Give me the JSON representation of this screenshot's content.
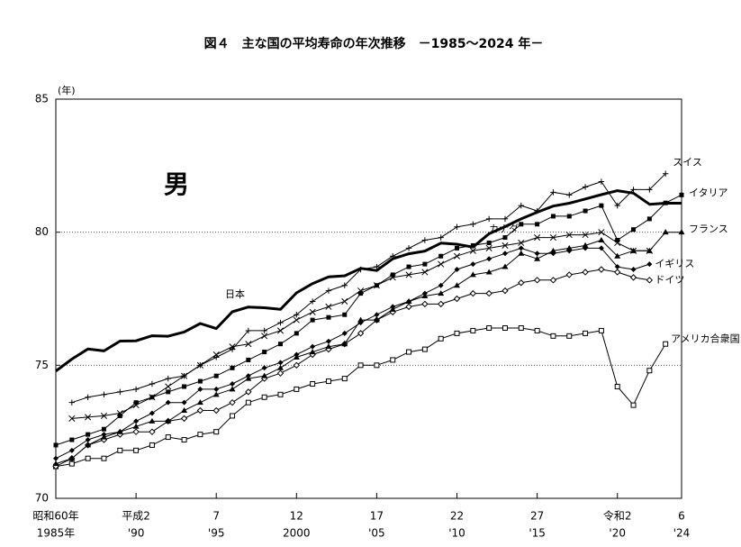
{
  "chart_data": {
    "type": "line",
    "title": "図４　主な国の平均寿命の年次推移　－1985～2024 年－",
    "annotation": "男",
    "y_unit": "(年)",
    "x": [
      1985,
      1986,
      1987,
      1988,
      1989,
      1990,
      1991,
      1992,
      1993,
      1994,
      1995,
      1996,
      1997,
      1998,
      1999,
      2000,
      2001,
      2002,
      2003,
      2004,
      2005,
      2006,
      2007,
      2008,
      2009,
      2010,
      2011,
      2012,
      2013,
      2014,
      2015,
      2016,
      2017,
      2018,
      2019,
      2020,
      2021,
      2022,
      2023,
      2024
    ],
    "xlim": [
      1985,
      2024
    ],
    "xticks": [
      {
        "value": 1985,
        "label": "1985年"
      },
      {
        "value": 1990,
        "label": "'90"
      },
      {
        "value": 1995,
        "label": "'95"
      },
      2000,
      {
        "value": 2005,
        "label": "'05"
      },
      {
        "value": 2010,
        "label": "'10"
      },
      {
        "value": 2015,
        "label": "'15"
      },
      {
        "value": 2020,
        "label": "'20"
      },
      {
        "value": 2024,
        "label": "'24"
      }
    ],
    "x_era_labels": [
      "昭和60年",
      "平成2",
      "7",
      "12",
      "17",
      "22",
      "27",
      "令和2",
      "6"
    ],
    "ylim": [
      70,
      85
    ],
    "yticks": [
      70,
      75,
      80,
      85
    ],
    "grid": true,
    "series": [
      {
        "name": "日本",
        "color": "#000000",
        "marker": "none",
        "values": [
          74.78,
          75.23,
          75.61,
          75.54,
          75.91,
          75.92,
          76.11,
          76.09,
          76.25,
          76.57,
          76.38,
          77.01,
          77.19,
          77.16,
          77.1,
          77.72,
          78.07,
          78.32,
          78.36,
          78.64,
          78.56,
          79.0,
          79.19,
          79.29,
          79.59,
          79.55,
          79.44,
          79.94,
          80.21,
          80.5,
          80.75,
          80.98,
          81.09,
          81.25,
          81.41,
          81.56,
          81.47,
          81.05,
          81.09,
          81.09
        ]
      },
      {
        "name": "スイス",
        "color": "#000000",
        "marker": "plus",
        "values": [
          null,
          73.6,
          73.8,
          73.9,
          74.0,
          74.1,
          74.3,
          74.5,
          74.6,
          75.0,
          75.3,
          75.6,
          76.3,
          76.3,
          76.6,
          76.9,
          77.4,
          77.8,
          78.0,
          78.6,
          78.7,
          79.1,
          79.4,
          79.7,
          79.8,
          80.2,
          80.3,
          80.5,
          80.5,
          81.0,
          80.8,
          81.5,
          81.4,
          81.7,
          81.9,
          81.0,
          81.6,
          81.6,
          82.2,
          null
        ]
      },
      {
        "name": "イタリア",
        "color": "#000000",
        "marker": "square",
        "values": [
          72.0,
          72.2,
          72.4,
          72.6,
          73.1,
          73.6,
          73.8,
          74.0,
          74.2,
          74.4,
          74.6,
          74.9,
          75.2,
          75.5,
          75.8,
          76.2,
          76.7,
          76.8,
          76.9,
          77.7,
          78.0,
          78.4,
          78.7,
          78.8,
          79.1,
          79.4,
          79.5,
          79.6,
          79.8,
          80.3,
          80.3,
          80.6,
          80.6,
          80.8,
          81.0,
          79.7,
          80.1,
          80.5,
          81.1,
          81.4
        ]
      },
      {
        "name": "フランス",
        "color": "#000000",
        "marker": "triangle",
        "values": [
          71.3,
          71.5,
          72.0,
          72.3,
          72.5,
          72.7,
          72.9,
          72.9,
          73.3,
          73.6,
          73.9,
          74.1,
          74.5,
          74.6,
          74.9,
          75.3,
          75.5,
          75.7,
          75.8,
          76.7,
          76.7,
          77.1,
          77.4,
          77.6,
          77.7,
          78.0,
          78.4,
          78.5,
          78.7,
          79.2,
          79.0,
          79.3,
          79.4,
          79.5,
          79.7,
          79.1,
          79.3,
          79.3,
          80.0,
          80.0
        ]
      },
      {
        "name": "カナダ",
        "color": "#000000",
        "marker": "x",
        "values": [
          null,
          73.0,
          73.05,
          73.1,
          73.2,
          73.5,
          73.8,
          74.2,
          74.6,
          75.0,
          75.4,
          75.7,
          75.8,
          76.1,
          76.3,
          76.7,
          77.0,
          77.2,
          77.4,
          77.8,
          78.0,
          78.3,
          78.4,
          78.5,
          78.8,
          79.1,
          79.3,
          79.4,
          79.5,
          79.6,
          79.8,
          79.8,
          79.9,
          79.9,
          80.0,
          79.6,
          79.3,
          79.3,
          null,
          null
        ]
      },
      {
        "name": "イギリス",
        "color": "#000000",
        "marker": "diamond",
        "values": [
          71.5,
          71.8,
          72.2,
          72.4,
          72.5,
          72.9,
          73.2,
          73.6,
          73.6,
          74.1,
          74.1,
          74.3,
          74.6,
          74.9,
          75.1,
          75.4,
          75.7,
          75.9,
          76.2,
          76.6,
          76.9,
          77.2,
          77.4,
          77.7,
          78.0,
          78.6,
          78.8,
          79.0,
          79.2,
          79.4,
          79.2,
          79.2,
          79.3,
          79.4,
          79.4,
          78.7,
          78.6,
          78.8,
          null,
          null
        ]
      },
      {
        "name": "ドイツ",
        "color": "#000000",
        "marker": "diamond-open",
        "values": [
          71.2,
          71.5,
          72.0,
          72.2,
          72.4,
          72.5,
          72.5,
          72.9,
          73.0,
          73.3,
          73.3,
          73.6,
          74.0,
          74.5,
          74.7,
          75.0,
          75.4,
          75.6,
          75.8,
          76.2,
          76.7,
          77.0,
          77.2,
          77.3,
          77.3,
          77.5,
          77.7,
          77.7,
          77.8,
          78.1,
          78.2,
          78.2,
          78.4,
          78.5,
          78.6,
          78.5,
          78.3,
          78.2,
          null,
          null
        ]
      },
      {
        "name": "アメリカ合衆国",
        "color": "#000000",
        "marker": "square-open",
        "values": [
          71.2,
          71.3,
          71.5,
          71.5,
          71.8,
          71.8,
          72.0,
          72.3,
          72.2,
          72.4,
          72.5,
          73.1,
          73.6,
          73.8,
          73.9,
          74.1,
          74.3,
          74.4,
          74.5,
          75.0,
          75.0,
          75.2,
          75.5,
          75.6,
          76.0,
          76.2,
          76.3,
          76.4,
          76.4,
          76.4,
          76.3,
          76.1,
          76.1,
          76.2,
          76.3,
          74.2,
          73.5,
          74.8,
          75.8,
          null
        ]
      }
    ]
  }
}
